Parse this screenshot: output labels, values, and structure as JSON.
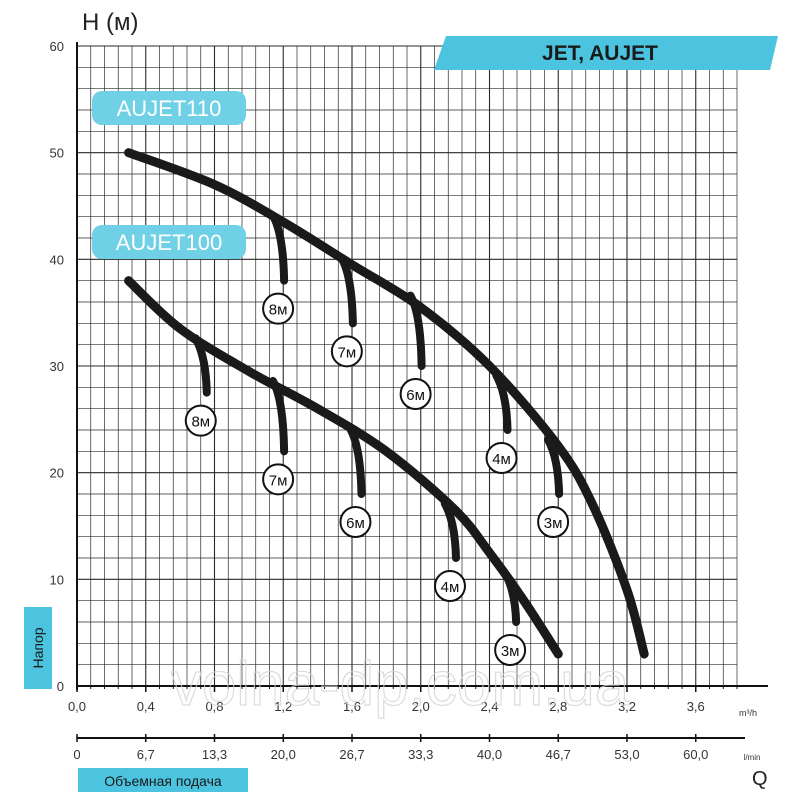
{
  "chart_data": {
    "type": "line",
    "title": "JET, AUJET",
    "ylabel": "H (м)",
    "ylabel_side": "Напор",
    "xlabel": "Q",
    "xlabel_side": "Объемная подача",
    "ylim": [
      0,
      60
    ],
    "xlim_m3h": [
      0,
      3.84
    ],
    "y_ticks": [
      "0",
      "10",
      "20",
      "30",
      "40",
      "50",
      "60"
    ],
    "x_ticks_m3h": [
      "0,0",
      "0,4",
      "0,8",
      "1,2",
      "1,6",
      "2,0",
      "2,4",
      "2,8",
      "3,2",
      "3,6"
    ],
    "x_unit_m3h": "m³/h",
    "x_ticks_lmin": [
      "0",
      "6,7",
      "13,3",
      "20,0",
      "26,7",
      "33,3",
      "40,0",
      "46,7",
      "53,0",
      "60,0"
    ],
    "x_unit_lmin": "l/min",
    "grid": true,
    "series": [
      {
        "name": "AUJET110",
        "x": [
          0.3,
          0.8,
          1.2,
          1.6,
          2.0,
          2.4,
          2.8,
          3.0,
          3.2,
          3.3
        ],
        "y": [
          50,
          47,
          43.5,
          39.5,
          35.5,
          30,
          22.5,
          17,
          9,
          3
        ],
        "suction_branches": [
          {
            "label": "8м",
            "x": 1.2,
            "y_top": 43.5,
            "y_end": 38
          },
          {
            "label": "7м",
            "x": 1.6,
            "y_top": 39.5,
            "y_end": 34
          },
          {
            "label": "6м",
            "x": 2.0,
            "y_top": 36,
            "y_end": 30
          },
          {
            "label": "4м",
            "x": 2.5,
            "y_top": 28.5,
            "y_end": 24
          },
          {
            "label": "3м",
            "x": 2.8,
            "y_top": 22.5,
            "y_end": 18
          }
        ]
      },
      {
        "name": "AUJET100",
        "x": [
          0.3,
          0.6,
          1.0,
          1.4,
          1.8,
          2.2,
          2.4,
          2.6,
          2.8
        ],
        "y": [
          38,
          33.5,
          29.5,
          26,
          22,
          16.5,
          12.5,
          8,
          3
        ],
        "suction_branches": [
          {
            "label": "8м",
            "x": 0.75,
            "y_top": 32,
            "y_end": 27.5
          },
          {
            "label": "7м",
            "x": 1.2,
            "y_top": 28,
            "y_end": 22
          },
          {
            "label": "6м",
            "x": 1.65,
            "y_top": 23.5,
            "y_end": 18
          },
          {
            "label": "4м",
            "x": 2.2,
            "y_top": 16.5,
            "y_end": 12
          },
          {
            "label": "3м",
            "x": 2.55,
            "y_top": 10,
            "y_end": 6
          }
        ]
      }
    ]
  },
  "watermark": "volna-dp.com.ua",
  "colors": {
    "accent": "#4cc3df",
    "curve": "#1a1a1a",
    "grid": "#222222"
  }
}
